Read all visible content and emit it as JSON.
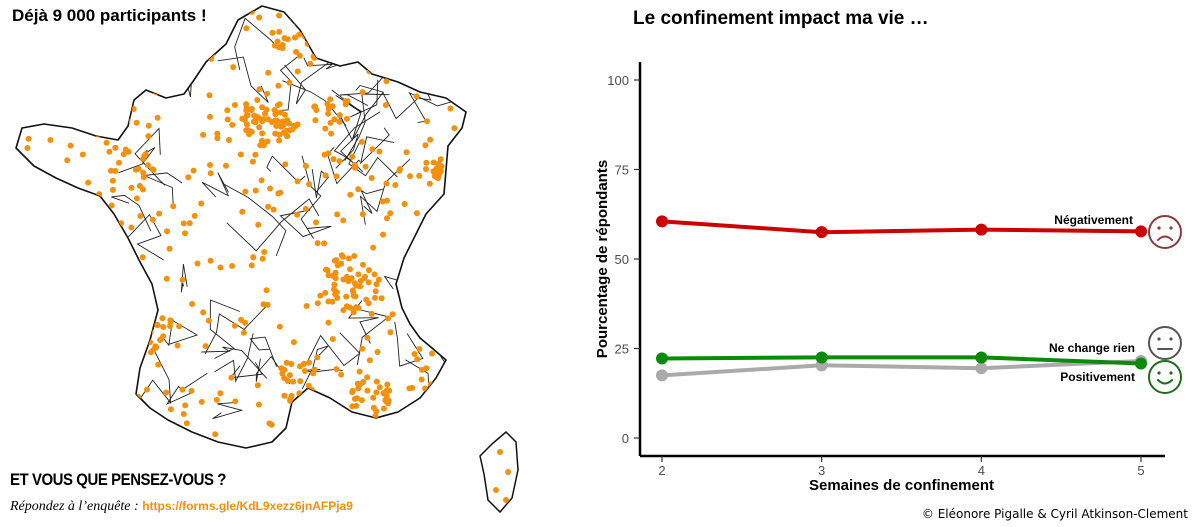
{
  "colors": {
    "accent_orange": "#f4900c",
    "negatif": "#cc0000",
    "neutre": "#aaaaaa",
    "positif": "#0b8a0b",
    "face_neg": "#8b3a3a",
    "face_neutral": "#555555",
    "face_pos": "#1e6b1e"
  },
  "map_panel": {
    "title": "Déjà 9 000 participants !",
    "cta": "ET VOUS QUE PENSEZ-VOUS ?",
    "survey_prefix": "Répondez à l’enquête : ",
    "survey_link": "https://forms.gle/KdL9xezz6jnAFPja9"
  },
  "chart_data": {
    "type": "line",
    "title": "Le confinement impact ma vie …",
    "xlabel": "Semaines de confinement",
    "ylabel": "Pourcentage de répondants",
    "x": [
      2,
      3,
      4,
      5
    ],
    "xlim": [
      2,
      5
    ],
    "ylim": [
      0,
      100
    ],
    "yticks": [
      0,
      25,
      50,
      75,
      100
    ],
    "grid": false,
    "series": [
      {
        "name": "Négativement",
        "color": "#cc0000",
        "values": [
          60.5,
          57.5,
          58.2,
          57.7
        ],
        "face": "sad"
      },
      {
        "name": "Ne change rien",
        "color": "#aaaaaa",
        "values": [
          17.5,
          20.3,
          19.5,
          21.5
        ],
        "face": "neutral"
      },
      {
        "name": "Positivement",
        "color": "#0b8a0b",
        "values": [
          22.2,
          22.5,
          22.5,
          20.8
        ],
        "face": "happy"
      }
    ]
  },
  "footer": {
    "credit": "© Eléonore Pigalle & Cyril Atkinson-Clement"
  }
}
